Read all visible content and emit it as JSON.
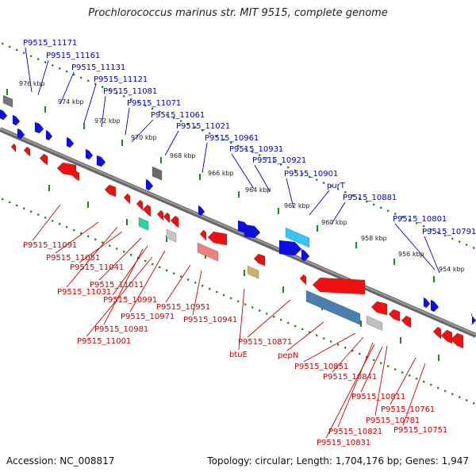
{
  "header": {
    "title": "Prochlorococcus marinus str. MIT 9515, complete genome"
  },
  "footer": {
    "accession": "Accession: NC_008817",
    "summary": "Topology: circular; Length: 1,704,176 bp; Genes: 1,947"
  },
  "colors": {
    "plus_strand": "#1010dd",
    "minus_strand": "#ee1111",
    "label_plus": "#0000bb",
    "label_minus": "#cc0000",
    "backbone": "#808080",
    "dots": "#2a8a2a",
    "ticks": "#1a8a1a"
  },
  "scale_labels": [
    "976 kbp",
    "974 kbp",
    "972 kbp",
    "970 kbp",
    "968 kbp",
    "966 kbp",
    "964 kbp",
    "962 kbp",
    "960 kbp",
    "958 kbp",
    "956 kbp",
    "954 kbp"
  ],
  "plus_labels": [
    "P9515_11171",
    "P9515_11161",
    "P9515_11131",
    "P9515_11121",
    "P9515_11081",
    "P9515_11071",
    "P9515_11061",
    "P9515_11021",
    "P9515_10961",
    "P9515_10931",
    "P9515_10921",
    "P9515_10901",
    "purT",
    "P9515_10881",
    "P9515_10801",
    "P9515_10791"
  ],
  "minus_labels": [
    "P9515_11091",
    "P9515_11051",
    "P9515_11041",
    "P9515_11011",
    "P9515_11031",
    "P9515_10991",
    "P9515_10971",
    "P9515_10981",
    "P9515_11001",
    "P9515_10951",
    "P9515_10941",
    "btuE",
    "P9515_10871",
    "pepN",
    "P9515_10851",
    "P9515_10841",
    "P9515_10811",
    "P9515_10761",
    "P9515_10781",
    "P9515_10821",
    "P9515_10751",
    "P9515_10831"
  ]
}
